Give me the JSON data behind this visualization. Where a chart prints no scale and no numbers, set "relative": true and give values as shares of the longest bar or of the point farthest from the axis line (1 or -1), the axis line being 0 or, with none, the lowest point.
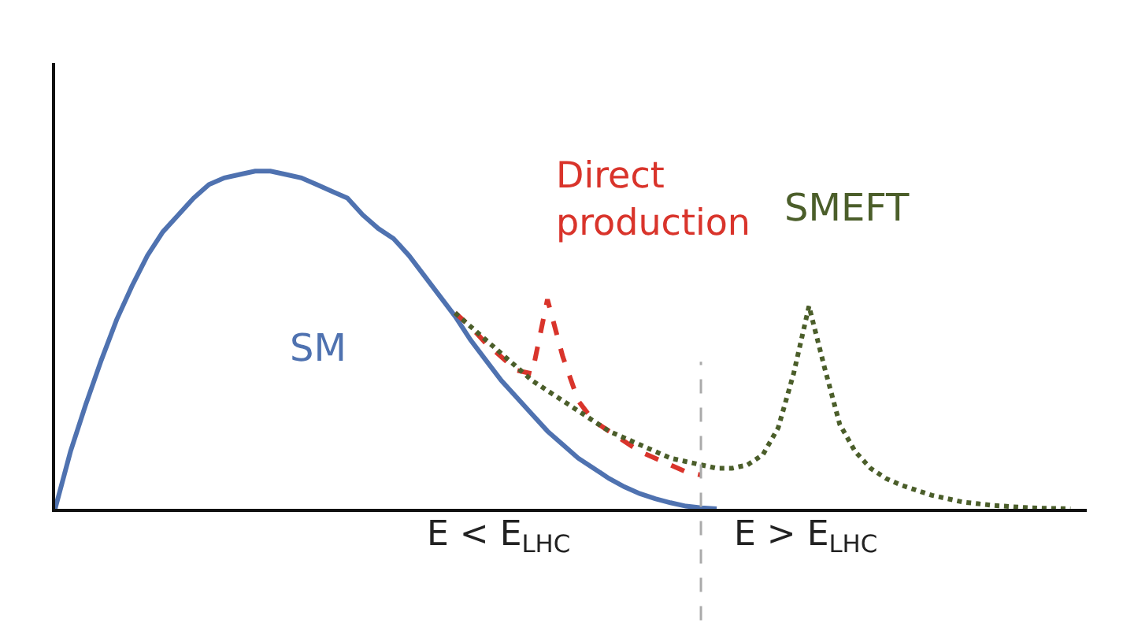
{
  "chart_data": {
    "type": "line",
    "relative": true,
    "legend": false,
    "categories": [
      null,
      null,
      null,
      null,
      null,
      null,
      null,
      null,
      null,
      null,
      null,
      null,
      null,
      null,
      null,
      null,
      null,
      null,
      null,
      null,
      null,
      null,
      null,
      null,
      null,
      null,
      null,
      null,
      null,
      null,
      null,
      null,
      null,
      null,
      null,
      null,
      null,
      null,
      null,
      null,
      null,
      null,
      null,
      null,
      null,
      null,
      null,
      null,
      null,
      null,
      null,
      null,
      null,
      null,
      null,
      null,
      null,
      null,
      null,
      null,
      null,
      null,
      null,
      null,
      null,
      null,
      null
    ],
    "series": [
      {
        "name": "SM",
        "color": "#4f72b0",
        "line_style": "solid",
        "values": [
          0,
          0.17,
          0.31,
          0.44,
          0.56,
          0.66,
          0.75,
          0.82,
          0.87,
          0.92,
          0.96,
          0.98,
          0.99,
          1.0,
          1.0,
          0.99,
          0.98,
          0.96,
          0.94,
          0.92,
          0.87,
          0.83,
          0.8,
          0.75,
          0.69,
          0.63,
          0.57,
          0.5,
          0.44,
          0.38,
          0.33,
          0.28,
          0.23,
          0.19,
          0.15,
          0.12,
          0.09,
          0.065,
          0.045,
          0.03,
          0.018,
          0.008,
          0.003,
          0,
          null,
          null,
          null,
          null,
          null,
          null,
          null,
          null,
          null,
          null,
          null,
          null,
          null,
          null,
          null,
          null,
          null,
          null,
          null,
          null,
          null,
          null,
          null
        ]
      },
      {
        "name": "Direct\nproduction",
        "color": "#d9342b",
        "line_style": "dashed",
        "values": [
          null,
          null,
          null,
          null,
          null,
          null,
          null,
          null,
          null,
          null,
          null,
          null,
          null,
          null,
          null,
          null,
          null,
          null,
          null,
          null,
          null,
          null,
          null,
          null,
          null,
          null,
          0.58,
          0.54,
          0.49,
          0.45,
          0.41,
          0.4,
          0.62,
          0.45,
          0.32,
          0.26,
          0.23,
          0.2,
          0.17,
          0.15,
          0.13,
          0.11,
          0.1,
          null,
          null,
          null,
          null,
          null,
          null,
          null,
          null,
          null,
          null,
          null,
          null,
          null,
          null,
          null,
          null,
          null,
          null,
          null,
          null,
          null,
          null,
          null,
          null
        ]
      },
      {
        "name": "SMEFT",
        "color": "#4b5e2a",
        "line_style": "dotted",
        "values": [
          null,
          null,
          null,
          null,
          null,
          null,
          null,
          null,
          null,
          null,
          null,
          null,
          null,
          null,
          null,
          null,
          null,
          null,
          null,
          null,
          null,
          null,
          null,
          null,
          null,
          null,
          0.58,
          0.54,
          0.5,
          0.46,
          0.42,
          0.38,
          0.35,
          0.32,
          0.29,
          0.26,
          0.23,
          0.21,
          0.19,
          0.17,
          0.15,
          0.14,
          0.13,
          0.12,
          0.12,
          0.13,
          0.16,
          0.24,
          0.4,
          0.6,
          0.42,
          0.25,
          0.17,
          0.12,
          0.09,
          0.07,
          0.055,
          0.04,
          0.03,
          0.02,
          0.015,
          0.01,
          0.007,
          0.004,
          0.002,
          0.001,
          0
        ]
      }
    ],
    "annotations": [
      "E < E$_{LHC}$",
      "E > E$_{LHC}$"
    ]
  }
}
